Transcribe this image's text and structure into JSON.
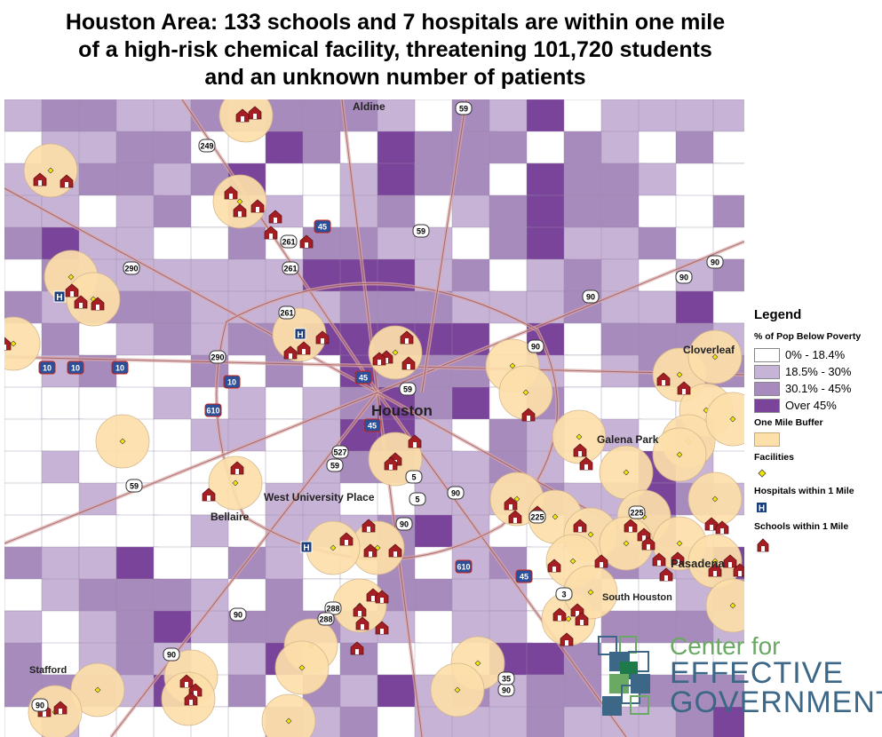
{
  "title": [
    "Houston Area: 133 schools and 7 hospitals are within one mile",
    "of a high-risk chemical facility, threatening 101,720 students",
    "and an unknown number of patients"
  ],
  "places": {
    "aldine": "Aldine",
    "houston": "Houston",
    "cloverleaf": "Cloverleaf",
    "galena_park": "Galena Park",
    "west_university": "West University Place",
    "bellaire": "Bellaire",
    "pasadena": "Pasadena",
    "south_houston": "South Houston",
    "stafford": "Stafford"
  },
  "highways": [
    "59",
    "249",
    "290",
    "261",
    "45",
    "10",
    "610",
    "527",
    "5",
    "90",
    "225",
    "3",
    "35",
    "288"
  ],
  "legend": {
    "title": "Legend",
    "poverty_heading": "% of Pop Below Poverty",
    "classes": [
      {
        "label": "0% - 18.4%",
        "color": "#ffffff"
      },
      {
        "label": "18.5% - 30%",
        "color": "#c7b3d6"
      },
      {
        "label": "30.1% - 45%",
        "color": "#a88bbd"
      },
      {
        "label": "Over 45%",
        "color": "#7a449b"
      }
    ],
    "buffer_heading": "One Mile Buffer",
    "buffer_color": "#fddfaa",
    "facilities_heading": "Facilities",
    "hospitals_heading": "Hospitals within 1 Mile",
    "schools_heading": "Schools within 1 Mile"
  },
  "logo": {
    "line1": "Center for",
    "line2": "EFFECTIVE",
    "line3": "GOVERNMENT"
  }
}
